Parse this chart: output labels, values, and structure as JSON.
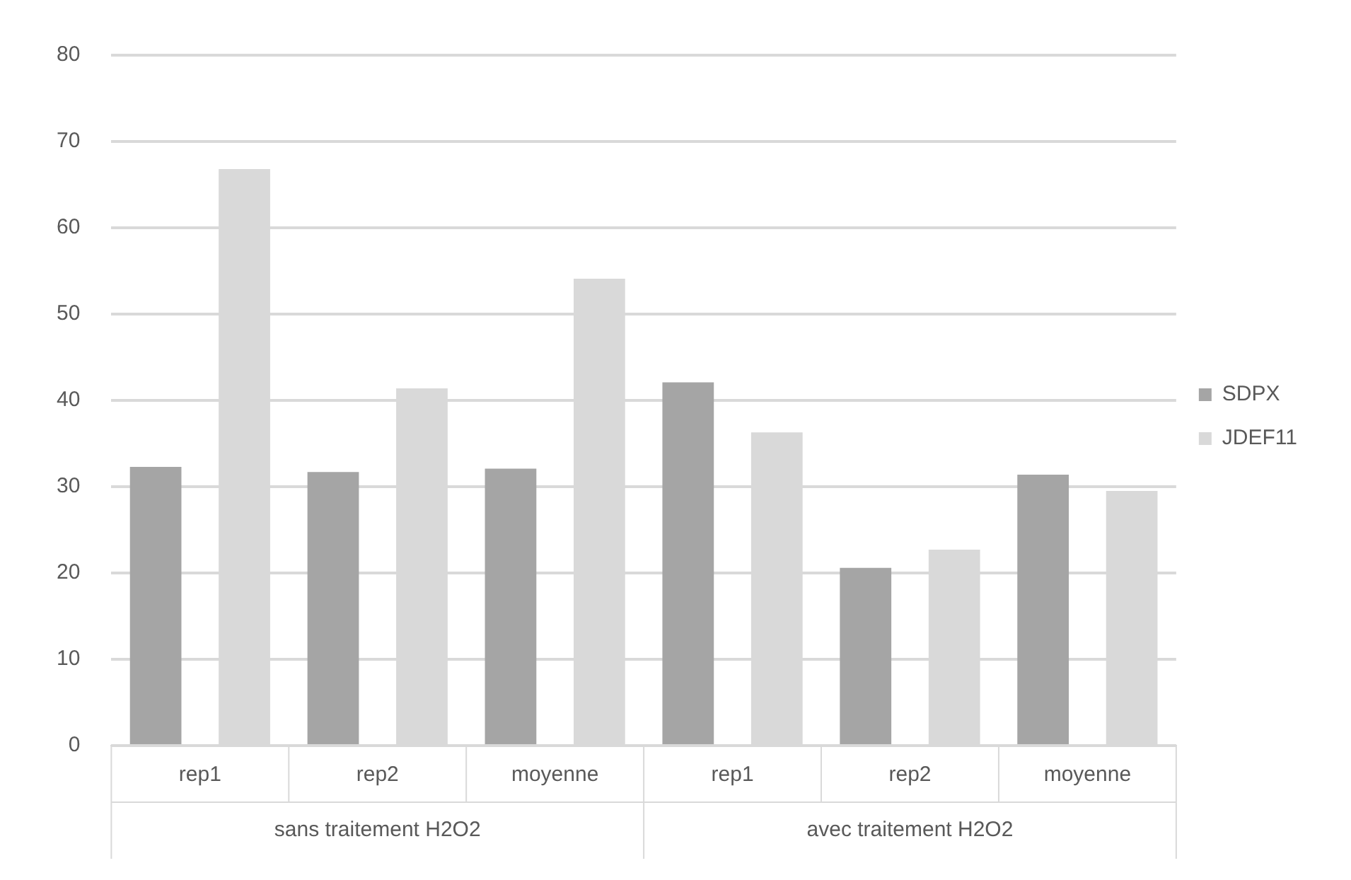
{
  "chart_data": {
    "type": "bar",
    "categories": [
      "rep1",
      "rep2",
      "moyenne",
      "rep1",
      "rep2",
      "moyenne"
    ],
    "series": [
      {
        "name": "SDPX",
        "color": "#a5a5a5",
        "values": [
          32.3,
          31.7,
          32.1,
          42.1,
          20.6,
          31.4
        ]
      },
      {
        "name": "JDEF11",
        "color": "#d9d9d9",
        "values": [
          66.8,
          41.4,
          54.1,
          36.3,
          22.7,
          29.5
        ]
      }
    ],
    "ylim": [
      0,
      80
    ],
    "yticks": [
      0,
      10,
      20,
      30,
      40,
      50,
      60,
      70,
      80
    ],
    "grid": "y",
    "legend": "right",
    "annotations": [
      "sans traitement H2O2",
      "avec traitement H2O2"
    ]
  }
}
